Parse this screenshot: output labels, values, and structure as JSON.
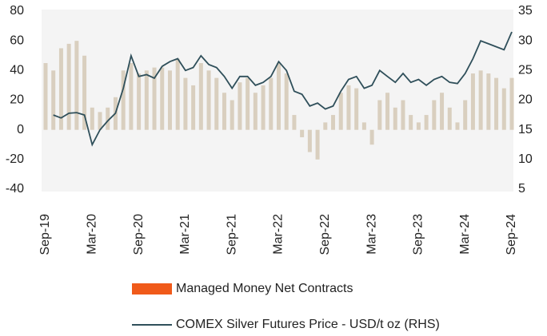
{
  "chart_data": {
    "type": "combo",
    "categories": [
      "Sep-19",
      null,
      null,
      null,
      null,
      null,
      "Mar-20",
      null,
      null,
      null,
      null,
      null,
      "Sep-20",
      null,
      null,
      null,
      null,
      null,
      "Mar-21",
      null,
      null,
      null,
      null,
      null,
      "Sep-21",
      null,
      null,
      null,
      null,
      null,
      "Mar-22",
      null,
      null,
      null,
      null,
      null,
      "Sep-22",
      null,
      null,
      null,
      null,
      null,
      "Mar-23",
      null,
      null,
      null,
      null,
      null,
      "Sep-23",
      null,
      null,
      null,
      null,
      null,
      "Mar-24",
      null,
      null,
      null,
      null,
      null,
      "Sep-24"
    ],
    "series": [
      {
        "name": "Managed Money Net Contracts",
        "type": "bar",
        "color": "#d9cfbf",
        "legend_color": "#f05a1a",
        "values": [
          45,
          40,
          55,
          58,
          60,
          50,
          15,
          12,
          15,
          22,
          40,
          45,
          38,
          40,
          42,
          42,
          40,
          48,
          35,
          30,
          45,
          40,
          35,
          25,
          20,
          32,
          35,
          25,
          30,
          35,
          45,
          38,
          10,
          -5,
          -15,
          -20,
          5,
          10,
          25,
          30,
          28,
          5,
          -10,
          20,
          25,
          15,
          20,
          10,
          5,
          10,
          20,
          25,
          15,
          5,
          20,
          38,
          40,
          38,
          35,
          28,
          35
        ]
      },
      {
        "name": "COMEX Silver Futures Price - USD/t oz (RHS)",
        "type": "line",
        "axis": "y2",
        "color": "#2f4f5a",
        "values": [
          null,
          17.5,
          17.0,
          17.8,
          17.9,
          17.5,
          12.5,
          15.0,
          16.5,
          17.8,
          22.0,
          27.5,
          24.0,
          24.3,
          23.7,
          25.7,
          26.5,
          27.0,
          25.0,
          25.5,
          27.5,
          26.0,
          25.5,
          24.0,
          22.0,
          24.0,
          24.0,
          22.5,
          23.0,
          24.0,
          26.5,
          25.0,
          21.5,
          21.0,
          19.0,
          19.5,
          18.5,
          19.0,
          21.5,
          23.5,
          24.0,
          22.0,
          22.5,
          25.0,
          24.0,
          23.0,
          24.5,
          23.0,
          23.5,
          22.5,
          23.5,
          24.0,
          23.0,
          22.8,
          24.5,
          27.0,
          30.0,
          29.5,
          29.0,
          28.5,
          31.5
        ]
      }
    ],
    "ylim": [
      -40,
      80
    ],
    "yticks": [
      -40,
      -20,
      0,
      20,
      40,
      60,
      80
    ],
    "y2lim": [
      5,
      35
    ],
    "y2ticks": [
      5,
      10,
      15,
      20,
      25,
      30,
      35
    ]
  }
}
